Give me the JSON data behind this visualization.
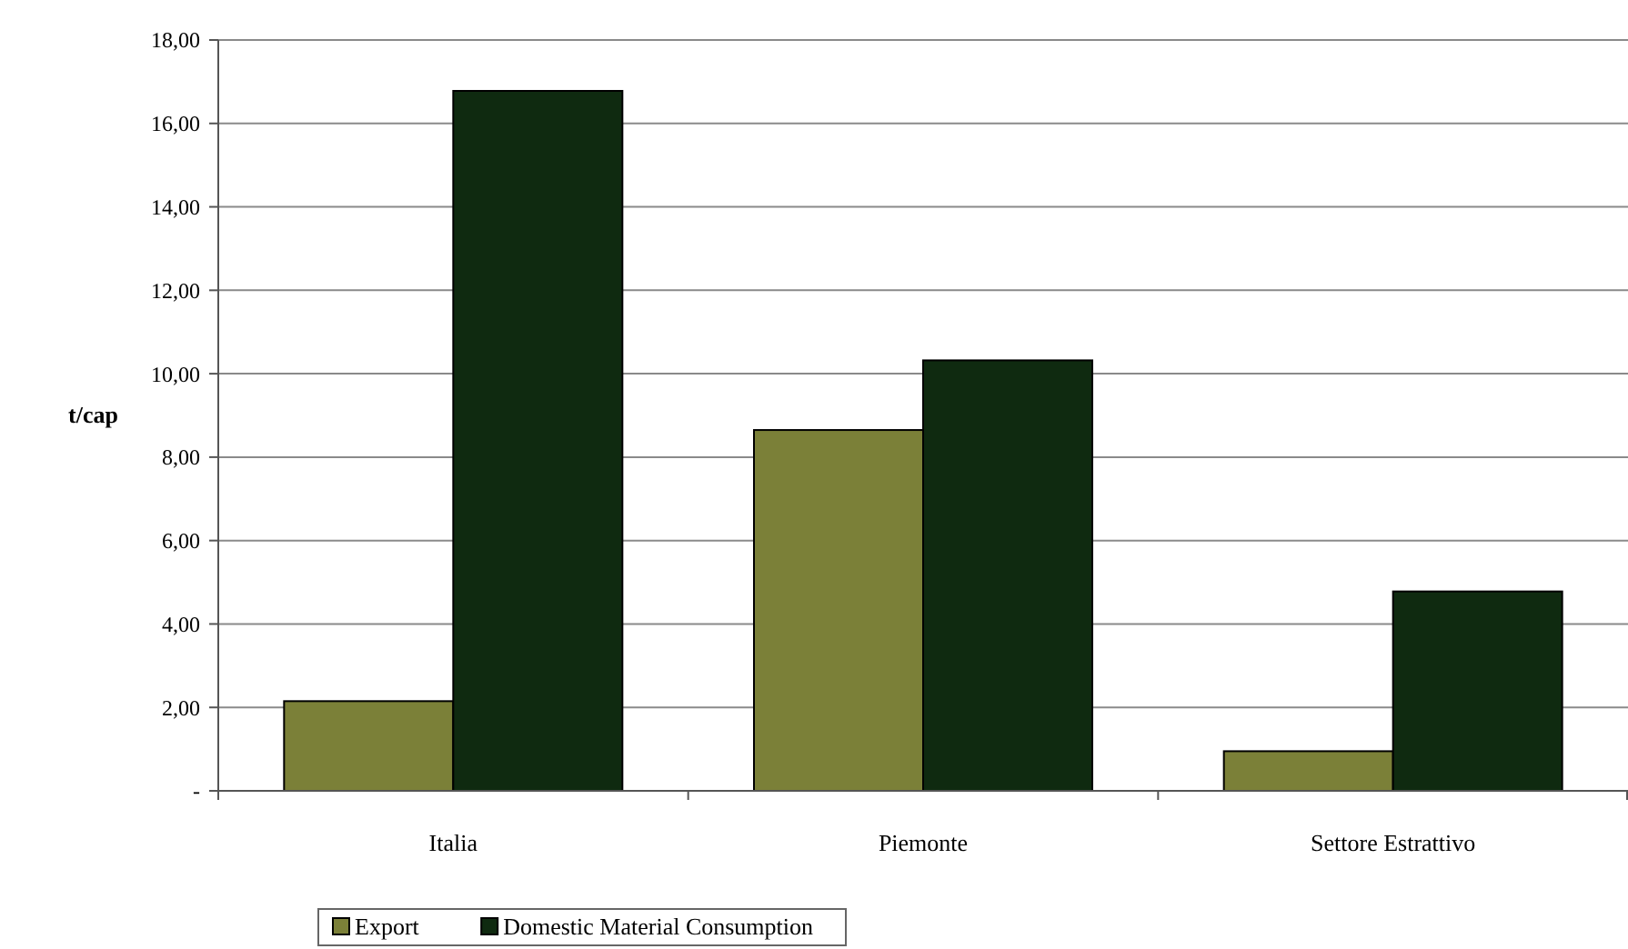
{
  "chart_data": {
    "type": "bar",
    "ylabel": "t/cap",
    "categories": [
      "Italia",
      "Piemonte",
      "Settore Estrattivo"
    ],
    "series": [
      {
        "name": "Export",
        "color": "#7b8038",
        "values": [
          2.15,
          8.65,
          0.95
        ]
      },
      {
        "name": "Domestic Material Consumption",
        "color": "#0f2a10",
        "values": [
          16.78,
          10.32,
          4.78
        ]
      }
    ],
    "ylim": [
      0,
      18
    ],
    "yticks": [
      {
        "value": 0,
        "label": "-"
      },
      {
        "value": 2,
        "label": "2,00"
      },
      {
        "value": 4,
        "label": "4,00"
      },
      {
        "value": 6,
        "label": "6,00"
      },
      {
        "value": 8,
        "label": "8,00"
      },
      {
        "value": 10,
        "label": "10,00"
      },
      {
        "value": 12,
        "label": "12,00"
      },
      {
        "value": 14,
        "label": "14,00"
      },
      {
        "value": 16,
        "label": "16,00"
      },
      {
        "value": 18,
        "label": "18,00"
      }
    ],
    "grid": "y",
    "legend": "bottom"
  }
}
